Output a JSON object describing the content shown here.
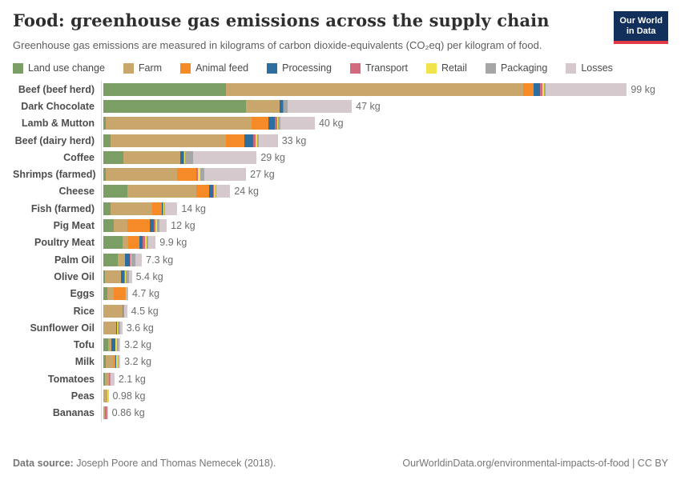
{
  "header": {
    "title": "Food: greenhouse gas emissions across the supply chain",
    "subtitle": "Greenhouse gas emissions are measured in kilograms of carbon dioxide-equivalents (CO₂eq) per kilogram of food.",
    "logo_line1": "Our World",
    "logo_line2": "in Data"
  },
  "legend": [
    {
      "label": "Land use change",
      "color": "#7a9e64"
    },
    {
      "label": "Farm",
      "color": "#c8a66c"
    },
    {
      "label": "Animal feed",
      "color": "#f58a27"
    },
    {
      "label": "Processing",
      "color": "#2e6e9e"
    },
    {
      "label": "Transport",
      "color": "#d2697c"
    },
    {
      "label": "Retail",
      "color": "#f1e34c"
    },
    {
      "label": "Packaging",
      "color": "#a6a6a6"
    },
    {
      "label": "Losses",
      "color": "#d5c9cd"
    }
  ],
  "chart_data": {
    "type": "bar",
    "stacked": true,
    "orientation": "horizontal",
    "grid": false,
    "legend_position": "top",
    "unit": "kg CO₂eq per kilogram of food",
    "xlim": [
      0,
      100
    ],
    "categories": [
      "Beef (beef herd)",
      "Dark Chocolate",
      "Lamb & Mutton",
      "Beef (dairy herd)",
      "Coffee",
      "Shrimps (farmed)",
      "Cheese",
      "Fish (farmed)",
      "Pig Meat",
      "Poultry Meat",
      "Palm Oil",
      "Olive Oil",
      "Eggs",
      "Rice",
      "Sunflower Oil",
      "Tofu",
      "Milk",
      "Tomatoes",
      "Peas",
      "Bananas"
    ],
    "totals": [
      99,
      47,
      40,
      33,
      29,
      27,
      24,
      14,
      12,
      9.9,
      7.3,
      5.4,
      4.7,
      4.5,
      3.6,
      3.2,
      3.2,
      2.1,
      0.98,
      0.86
    ],
    "totals_label": [
      "99 kg",
      "47 kg",
      "40 kg",
      "33 kg",
      "29 kg",
      "27 kg",
      "24 kg",
      "14 kg",
      "12 kg",
      "9.9 kg",
      "7.3 kg",
      "5.4 kg",
      "4.7 kg",
      "4.5 kg",
      "3.6 kg",
      "3.2 kg",
      "3.2 kg",
      "2.1 kg",
      "0.98 kg",
      "0.86 kg"
    ],
    "series": [
      {
        "name": "Land use change",
        "color": "#7a9e64",
        "values": [
          23.2,
          26.9,
          0.5,
          1.3,
          3.8,
          0.4,
          4.6,
          1.4,
          1.9,
          3.7,
          2.8,
          0.3,
          0.7,
          0,
          0.05,
          0.95,
          0.5,
          0.35,
          0,
          0
        ]
      },
      {
        "name": "Farm",
        "color": "#c8a66c",
        "values": [
          56.2,
          6.5,
          27.5,
          21.9,
          10.7,
          13.5,
          13.0,
          7.9,
          2.6,
          1.0,
          1.25,
          3.05,
          1.3,
          3.6,
          2.3,
          0.5,
          1.5,
          0.7,
          0.72,
          0.27
        ]
      },
      {
        "name": "Animal feed",
        "color": "#f58a27",
        "values": [
          1.9,
          0,
          3.25,
          3.5,
          0,
          3.7,
          2.4,
          1.8,
          4.3,
          2.1,
          0,
          0,
          2.2,
          0,
          0,
          0,
          0.25,
          0,
          0,
          0
        ]
      },
      {
        "name": "Processing",
        "color": "#2e6e9e",
        "values": [
          1.3,
          0.6,
          1.15,
          1.6,
          0.7,
          0,
          0.7,
          0.05,
          0.75,
          0.65,
          1.0,
          0.65,
          0,
          0.05,
          0.2,
          0.75,
          0.15,
          0.01,
          0,
          0.06
        ]
      },
      {
        "name": "Transport",
        "color": "#d2697c",
        "values": [
          0.5,
          0.1,
          0.45,
          0.5,
          0.15,
          0.3,
          0.15,
          0.25,
          0.3,
          0.4,
          0.15,
          0.15,
          0.1,
          0.1,
          0.1,
          0.15,
          0.1,
          0.18,
          0.09,
          0.3
        ]
      },
      {
        "name": "Retail",
        "color": "#f1e34c",
        "values": [
          0.25,
          0.05,
          0.25,
          0.25,
          0.05,
          0.45,
          0.35,
          0.1,
          0.25,
          0.3,
          0.05,
          0.05,
          0.05,
          0.05,
          0.05,
          0.25,
          0.25,
          0.02,
          0.04,
          0.02
        ]
      },
      {
        "name": "Packaging",
        "color": "#a6a6a6",
        "values": [
          0.35,
          0.7,
          0.35,
          0.35,
          1.5,
          0.75,
          0.2,
          0.15,
          0.45,
          0.4,
          0.75,
          0.6,
          0.15,
          0.1,
          0.55,
          0.25,
          0.1,
          0.15,
          0.04,
          0.07
        ]
      },
      {
        "name": "Losses",
        "color": "#d5c9cd",
        "values": [
          15.3,
          12.15,
          6.55,
          3.6,
          12.1,
          7.9,
          2.6,
          2.35,
          1.45,
          1.35,
          1.3,
          0.6,
          0.2,
          0.6,
          0.35,
          0.35,
          0.35,
          0.69,
          0.09,
          0.14
        ]
      }
    ]
  },
  "footer": {
    "source_label": "Data source:",
    "source_text": " Joseph Poore and Thomas Nemecek (2018).",
    "right_text": "OurWorldinData.org/environmental-impacts-of-food | CC BY"
  }
}
